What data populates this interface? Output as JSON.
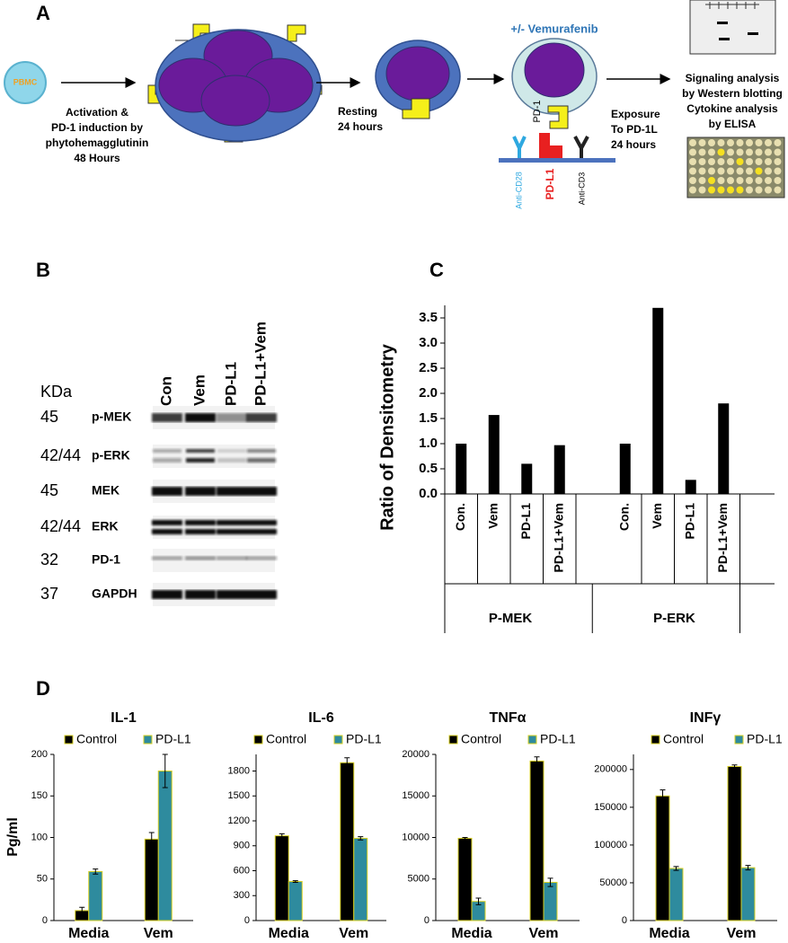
{
  "panel_a": {
    "label": "A",
    "pbmc": "PBMC",
    "activation": [
      "Activation &",
      "PD-1 induction  by",
      "phytohemagglutinin",
      "48 Hours"
    ],
    "resting": [
      "Resting",
      "24 hours"
    ],
    "treatment": "+/- Vemurafenib",
    "pd1": "PD-1",
    "exposure": [
      "Exposure",
      "To PD-1L",
      "24 hours"
    ],
    "anti_cd28": "Anti-CD28",
    "pdl1": "PD-L1",
    "anti_cd3": "Anti-CD3",
    "analysis": [
      "Signaling analysis",
      "by Western blotting",
      "Cytokine analysis",
      "by ELISA"
    ]
  },
  "panel_b": {
    "label": "B",
    "kda_header": "KDa",
    "lanes": [
      "Con",
      "Vem",
      "PD-L1",
      "PD-L1+Vem"
    ],
    "rows": [
      {
        "kda": "45",
        "name": "p-MEK"
      },
      {
        "kda": "42/44",
        "name": "p-ERK"
      },
      {
        "kda": "45",
        "name": "MEK"
      },
      {
        "kda": "42/44",
        "name": "ERK"
      },
      {
        "kda": "32",
        "name": "PD-1"
      },
      {
        "kda": "37",
        "name": "GAPDH"
      }
    ]
  },
  "panel_c": {
    "label": "C",
    "chart": {
      "type": "bar",
      "y_label": "Ratio of Densitometry",
      "color": "#000000",
      "ylim": [
        0,
        3.75
      ],
      "yticks": [
        {
          "value": 0,
          "label": "0.0"
        },
        0.5,
        {
          "value": 1,
          "label": "1.0"
        },
        1.5,
        {
          "value": 2,
          "label": "2.0"
        },
        2.5,
        {
          "value": 3,
          "label": "3.0"
        },
        3.5
      ],
      "groups": [
        {
          "name": "P-MEK",
          "categories": [
            "Con.",
            "Vem",
            "PD-L1",
            "PD-L1+Vem"
          ],
          "values": [
            1.0,
            1.57,
            0.6,
            0.97
          ]
        },
        {
          "name": "P-ERK",
          "categories": [
            "Con.",
            "Vem",
            "PD-L1",
            "PD-L1+Vem"
          ],
          "values": [
            1.0,
            3.7,
            0.28,
            1.8
          ]
        }
      ]
    }
  },
  "panel_d": {
    "label": "D",
    "y_label": "Pg/ml",
    "charts": [
      {
        "type": "bar",
        "title": "IL-1",
        "categories": [
          "Media",
          "Vem"
        ],
        "ylim": [
          0,
          200
        ],
        "yticks": [
          0,
          50,
          100,
          150,
          200
        ],
        "series": [
          {
            "name": "Control",
            "color": "#000000",
            "values": [
              12,
              98
            ],
            "errors": [
              4,
              8
            ]
          },
          {
            "name": "PD-L1",
            "color": "#2e8b9e",
            "values": [
              59,
              180
            ],
            "errors": [
              3,
              20
            ]
          }
        ]
      },
      {
        "type": "bar",
        "title": "IL-6",
        "categories": [
          "Media",
          "Vem"
        ],
        "ylim": [
          0,
          2000
        ],
        "yticks": [
          0,
          300,
          600,
          900,
          1200,
          1500,
          1800
        ],
        "series": [
          {
            "name": "Control",
            "color": "#000000",
            "values": [
              1020,
              1900
            ],
            "errors": [
              25,
              60
            ]
          },
          {
            "name": "PD-L1",
            "color": "#2e8b9e",
            "values": [
              470,
              990
            ],
            "errors": [
              10,
              20
            ]
          }
        ]
      },
      {
        "type": "bar",
        "title": "TNFα",
        "categories": [
          "Media",
          "Vem"
        ],
        "ylim": [
          0,
          20000
        ],
        "yticks": [
          0,
          5000,
          10000,
          15000,
          20000
        ],
        "series": [
          {
            "name": "Control",
            "color": "#000000",
            "values": [
              9900,
              19200
            ],
            "errors": [
              100,
              500
            ]
          },
          {
            "name": "PD-L1",
            "color": "#2e8b9e",
            "values": [
              2300,
              4600
            ],
            "errors": [
              400,
              500
            ]
          }
        ]
      },
      {
        "type": "bar",
        "title": "INFγ",
        "categories": [
          "Media",
          "Vem"
        ],
        "ylim": [
          0,
          220000
        ],
        "yticks": [
          0,
          50000,
          100000,
          150000,
          200000
        ],
        "series": [
          {
            "name": "Control",
            "color": "#000000",
            "values": [
              165000,
              204000
            ],
            "errors": [
              8000,
              2000
            ]
          },
          {
            "name": "PD-L1",
            "color": "#2e8b9e",
            "values": [
              69000,
              70000
            ],
            "errors": [
              2500,
              3000
            ]
          }
        ]
      }
    ]
  }
}
